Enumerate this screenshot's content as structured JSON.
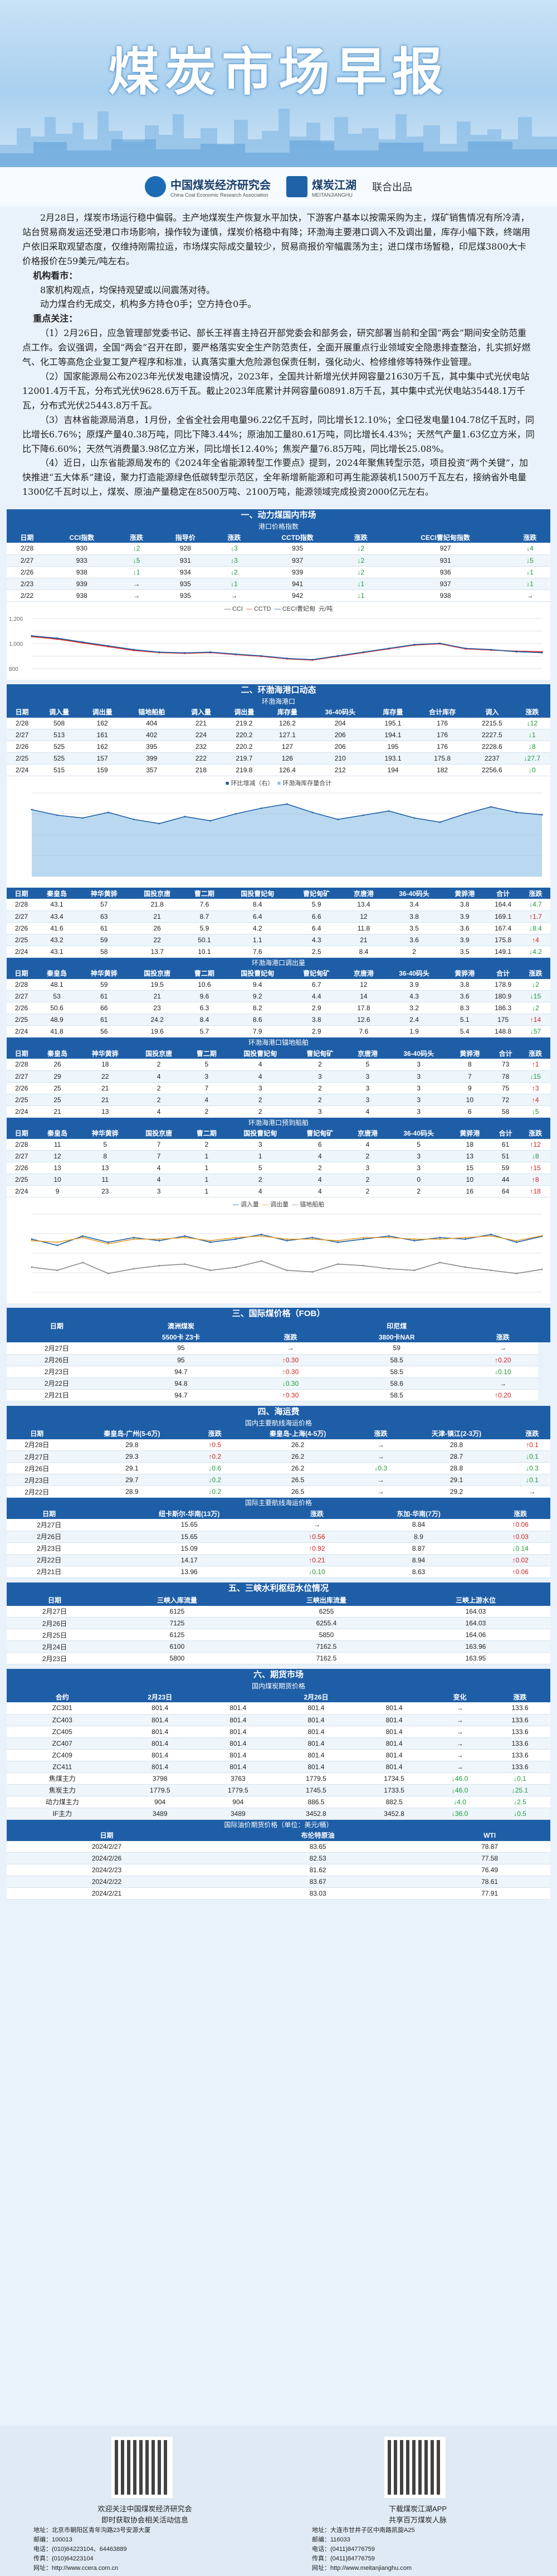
{
  "header": {
    "title": "煤炭市场早报",
    "logo1": "中国煤炭经济研究会",
    "logo1_en": "China Coal Economic Research Association",
    "logo2": "煤炭江湖",
    "logo2_en": "MEITANJIANGHU",
    "joint": "联合出品"
  },
  "intro": {
    "p1": "2月28日，煤炭市场运行稳中偏弱。主产地煤炭生产恢复水平加快，下游客户基本以按需采购为主，煤矿销售情况有所冷清，站台贸易商发运还受港口市场影响，操作较为谨慎，煤炭价格稳中有降；环渤海主要港口调入不及调出量，库存小幅下跌，终端用户依旧采取观望态度，仅维持刚需拉运，市场煤实际成交量较少，贸易商报价窄幅震荡为主；进口煤市场暂稳，印尼煤3800大卡价格报价在59美元/吨左右。",
    "h1": "机构看市：",
    "p2": "8家机构观点，均保持观望或以间震荡对待。",
    "p3": "动力煤合约无成交，机构多方持仓0手；空方持仓0手。",
    "h2": "重点关注：",
    "p4": "（1）2月26日，应急管理部党委书记、部长王祥喜主持召开部党委会和部务会，研究部署当前和全国“两会”期间安全防范重点工作。会议强调，全国“两会”召开在即，要严格落实安全生产防范责任，全面开展重点行业领域安全隐患排查整治，扎实抓好燃气、化工等高危企业复工复产程序和标准，认真落实重大危险源包保责任制，强化动火、检修维修等特殊作业管理。",
    "p5": "（2）国家能源局公布2023年光伏发电建设情况，2023年，全国共计新增光伏并网容量21630万千瓦，其中集中式光伏电站12001.4万千瓦，分布式光伏9628.6万千瓦。截止2023年底累计并网容量60891.8万千瓦，其中集中式光伏电站35448.1万千瓦，分布式光伏25443.8万千瓦。",
    "p6": "（3）吉林省能源局消息，1月份，全省全社会用电量96.22亿千瓦时，同比增长12.10%；全口径发电量104.78亿千瓦时，同比增长6.76%；原煤产量40.38万吨，同比下降3.44%；原油加工量80.61万吨，同比增长4.43%；天然气产量1.63亿立方米，同比下降6.60%；天然气消费量3.98亿立方米，同比增长12.40%；焦炭产量76.85万吨，同比增长25.08%。",
    "p7": "（4）近日，山东省能源局发布的《2024年全省能源转型工作要点》提到，2024年聚焦转型示范，项目投资“两个关键”，加快推进“五大体系”建设，聚力打造能源绿色低碳转型示范区，全年新增新能源和可再生能源装机1500万千瓦左右，接纳省外电量1300亿千瓦时以上，煤炭、原油产量稳定在8500万吨、2100万吨，能源领域完成投资2000亿元左右。"
  },
  "s1": {
    "title": "一、动力煤国内市场",
    "sub": "港口价格指数",
    "headers": [
      "日期",
      "CCI指数",
      "涨跌",
      "指导价",
      "涨跌",
      "CCTD指数",
      "涨跌",
      "CECI曹妃甸指数",
      "涨跌"
    ],
    "rows": [
      [
        "2/28",
        "930",
        "↓2",
        "928",
        "↓3",
        "935",
        "↓2",
        "927",
        "↓4"
      ],
      [
        "2/27",
        "933",
        "↓5",
        "931",
        "↓3",
        "937",
        "↓2",
        "931",
        "↓5"
      ],
      [
        "2/26",
        "938",
        "↓1",
        "934",
        "↓2",
        "939",
        "↓2",
        "936",
        "↓1"
      ],
      [
        "2/23",
        "939",
        "→",
        "935",
        "↓1",
        "941",
        "↓1",
        "937",
        "↓1"
      ],
      [
        "2/22",
        "938",
        "→",
        "935",
        "→",
        "942",
        "↓1",
        "938",
        "→"
      ]
    ],
    "legend": [
      "CCI",
      "CCTD",
      "CECI曹妃甸"
    ],
    "unit": "元/吨",
    "chart_data": {
      "type": "line",
      "series": [
        {
          "name": "CCI",
          "values": [
            1060,
            1040,
            1010,
            980,
            950,
            930,
            925,
            930,
            915,
            900,
            880,
            870,
            900,
            930,
            960,
            990,
            1000,
            960,
            950,
            935,
            930
          ]
        },
        {
          "name": "CCTD",
          "values": [
            1055,
            1035,
            1005,
            975,
            945,
            928,
            922,
            928,
            912,
            898,
            878,
            868,
            898,
            928,
            958,
            988,
            998,
            958,
            948,
            940,
            935
          ]
        },
        {
          "name": "CECI曹妃甸",
          "values": [
            1062,
            1043,
            1012,
            982,
            952,
            932,
            926,
            932,
            916,
            902,
            882,
            872,
            902,
            932,
            962,
            992,
            1002,
            962,
            952,
            936,
            927
          ]
        }
      ],
      "ylim": [
        800,
        1200
      ],
      "yticks": [
        "1,200",
        "1,000",
        "800"
      ]
    }
  },
  "s2": {
    "title": "二、环渤海港口动态",
    "sub1": "环渤海港口",
    "headers": [
      "日期",
      "调入量",
      "调出量",
      "锚地船舶",
      "调入量",
      "调出量",
      "库存量",
      "36-40码头",
      "库存量",
      "合计库存",
      "调入",
      "涨跌"
    ],
    "rows1": [
      [
        "2/28",
        "508",
        "162",
        "404",
        "221",
        "219.2",
        "126.2",
        "204",
        "195.1",
        "176",
        "2215.5",
        "↓12"
      ],
      [
        "2/27",
        "513",
        "161",
        "402",
        "224",
        "220.2",
        "127.1",
        "206",
        "194.1",
        "176",
        "2227.5",
        "↓1"
      ],
      [
        "2/26",
        "525",
        "162",
        "395",
        "232",
        "220.2",
        "127",
        "206",
        "195",
        "176",
        "2228.6",
        "↓8"
      ],
      [
        "2/25",
        "525",
        "157",
        "399",
        "222",
        "219.7",
        "126",
        "210",
        "193.1",
        "175.8",
        "2237",
        "↓27.7"
      ],
      [
        "2/24",
        "515",
        "159",
        "357",
        "218",
        "219.8",
        "126.4",
        "212",
        "194",
        "182",
        "2256.6",
        "↓0"
      ]
    ],
    "legend1": [
      "环比增减（右）",
      "环渤海库存量合计"
    ],
    "sub2": "环渤海锚地船舶",
    "headers2": [
      "日期",
      "秦皇岛",
      "神华黄骅",
      "国投京唐",
      "曹二期",
      "国投曹妃甸",
      "曹妃甸矿",
      "京唐港",
      "36-40码头",
      "黄骅港",
      "合计",
      "涨跌"
    ],
    "rows2": [
      [
        "2/28",
        "43.1",
        "57",
        "21.8",
        "7.6",
        "8.4",
        "5.9",
        "13.4",
        "3.4",
        "3.8",
        "164.4",
        "↓4.7"
      ],
      [
        "2/27",
        "43.4",
        "63",
        "21",
        "8.7",
        "6.4",
        "6.6",
        "12",
        "3.8",
        "3.9",
        "169.1",
        "↑1.7"
      ],
      [
        "2/26",
        "41.6",
        "61",
        "26",
        "5.9",
        "4.2",
        "6.4",
        "11.8",
        "3.5",
        "3.6",
        "167.4",
        "↓8.4"
      ],
      [
        "2/25",
        "43.2",
        "59",
        "22",
        "50.1",
        "1.1",
        "4.3",
        "21",
        "3.6",
        "3.9",
        "175.8",
        "↑4"
      ],
      [
        "2/24",
        "43.1",
        "58",
        "13.7",
        "10.1",
        "7.6",
        "2.5",
        "8.4",
        "2",
        "3.5",
        "149.1",
        "↓4.2"
      ]
    ],
    "sub3": "环渤海港口调出量",
    "rows3": [
      [
        "2/28",
        "48.1",
        "59",
        "19.5",
        "10.6",
        "9.4",
        "6.7",
        "12",
        "3.9",
        "3.8",
        "178.9",
        "↓2"
      ],
      [
        "2/27",
        "53",
        "61",
        "21",
        "9.6",
        "9.2",
        "4.4",
        "14",
        "4.3",
        "3.6",
        "180.9",
        "↓15"
      ],
      [
        "2/26",
        "50.6",
        "66",
        "23",
        "6.3",
        "8.2",
        "2.9",
        "17.8",
        "3.2",
        "8.3",
        "186.3",
        "↓2"
      ],
      [
        "2/25",
        "48.9",
        "61",
        "24.2",
        "8.4",
        "8.6",
        "3.8",
        "12.6",
        "2.4",
        "5.1",
        "175",
        "↑14"
      ],
      [
        "2/24",
        "41.8",
        "56",
        "19.6",
        "5.7",
        "7.9",
        "2.9",
        "7.6",
        "1.9",
        "5.4",
        "148.8",
        "↓57"
      ]
    ],
    "sub4": "环渤海港口锚地船舶",
    "rows4": [
      [
        "2/28",
        "26",
        "18",
        "2",
        "5",
        "4",
        "2",
        "5",
        "3",
        "8",
        "73",
        "↑1"
      ],
      [
        "2/27",
        "29",
        "22",
        "4",
        "3",
        "4",
        "3",
        "3",
        "3",
        "7",
        "78",
        "↓15"
      ],
      [
        "2/26",
        "25",
        "21",
        "2",
        "7",
        "3",
        "2",
        "3",
        "3",
        "9",
        "75",
        "↑3"
      ],
      [
        "2/25",
        "25",
        "21",
        "2",
        "4",
        "2",
        "2",
        "3",
        "3",
        "10",
        "72",
        "↑4"
      ],
      [
        "2/24",
        "21",
        "13",
        "4",
        "2",
        "2",
        "3",
        "4",
        "3",
        "6",
        "58",
        "↓5"
      ]
    ],
    "sub5": "环渤海港口预到船舶",
    "rows5": [
      [
        "2/28",
        "11",
        "5",
        "7",
        "2",
        "3",
        "6",
        "4",
        "5",
        "18",
        "61",
        "↑12"
      ],
      [
        "2/27",
        "12",
        "8",
        "7",
        "1",
        "1",
        "4",
        "2",
        "3",
        "13",
        "51",
        "↓8"
      ],
      [
        "2/26",
        "13",
        "13",
        "4",
        "1",
        "5",
        "2",
        "3",
        "3",
        "15",
        "59",
        "↑15"
      ],
      [
        "2/25",
        "10",
        "11",
        "4",
        "1",
        "2",
        "4",
        "2",
        "0",
        "10",
        "44",
        "↑8"
      ],
      [
        "2/24",
        "9",
        "23",
        "3",
        "1",
        "4",
        "4",
        "2",
        "2",
        "16",
        "64",
        "↑18"
      ]
    ],
    "legend6": [
      "调入量",
      "调出量",
      "锚地船舶"
    ],
    "chart_data": [
      {
        "type": "area",
        "series": [
          {
            "name": "环渤海库存量合计",
            "values": [
              2400,
              2200,
              2100,
              2300,
              2050,
              1900,
              2150,
              2000,
              2250,
              2450,
              2600,
              2300,
              2050,
              2200,
              2350,
              2100,
              1950,
              2250,
              2500,
              2300,
              2216
            ]
          }
        ],
        "ylim": [
          0,
          3000
        ]
      },
      {
        "type": "line",
        "series": [
          {
            "name": "调入量",
            "values": [
              170,
              150,
              180,
              160,
              175,
              165,
              180,
              160,
              170,
              185,
              165,
              175,
              160,
              170,
              180,
              165,
              175,
              170,
              185,
              160,
              179
            ]
          },
          {
            "name": "调出量",
            "values": [
              165,
              160,
              175,
              155,
              170,
              170,
              175,
              165,
              175,
              180,
              170,
              170,
              165,
              175,
              175,
              170,
              170,
              175,
              180,
              165,
              181
            ]
          },
          {
            "name": "锚地船舶",
            "values": [
              80,
              70,
              95,
              60,
              75,
              85,
              90,
              70,
              80,
              100,
              70,
              65,
              90,
              85,
              75,
              70,
              95,
              80,
              70,
              60,
              73
            ]
          }
        ],
        "ylim": [
          0,
          250
        ]
      }
    ]
  },
  "s3": {
    "title": "三、国际煤价格（FOB）",
    "headers": [
      "日期",
      "澳洲煤炭",
      "",
      "印尼煤",
      "",
      ""
    ],
    "sub": [
      "5500卡 Z3卡",
      "涨跌",
      "3800卡NAR",
      "涨跌"
    ],
    "rows": [
      [
        "2月27日",
        "95",
        "→",
        "59",
        "→"
      ],
      [
        "2月26日",
        "95",
        "↑0.30",
        "58.5",
        "↑0.20"
      ],
      [
        "2月23日",
        "94.7",
        "↑0.30",
        "58.5",
        "↓0.10"
      ],
      [
        "2月22日",
        "94.8",
        "↓0.30",
        "58.6",
        "→"
      ],
      [
        "2月21日",
        "94.7",
        "↑0.30",
        "58.5",
        "↑0.20"
      ]
    ]
  },
  "s4": {
    "title": "四、海运费",
    "sub1": "国内主要航线海运价格",
    "h1": [
      "日期",
      "秦皇岛-广州(5-6万)",
      "涨跌",
      "秦皇岛-上海(4-5万)",
      "涨跌",
      "天津-镇江(2-3万)",
      "涨跌"
    ],
    "rows1": [
      [
        "2月28日",
        "29.8",
        "↑0.5",
        "26.2",
        "→",
        "28.8",
        "↑0.1"
      ],
      [
        "2月27日",
        "29.3",
        "↑0.2",
        "26.2",
        "→",
        "28.7",
        "↓0.1"
      ],
      [
        "2月26日",
        "29.1",
        "↓0.6",
        "26.2",
        "↓0.3",
        "28.8",
        "↓0.3"
      ],
      [
        "2月23日",
        "29.7",
        "↓0.2",
        "26.5",
        "→",
        "29.1",
        "↓0.1"
      ],
      [
        "2月22日",
        "28.9",
        "↓0.2",
        "26.5",
        "→",
        "29.2",
        "→"
      ]
    ],
    "sub2": "国际主要航线海运价格",
    "h2": [
      "日期",
      "纽卡斯尔-华南(13万)",
      "涨跌",
      "东加-华南(7万)",
      "涨跌"
    ],
    "rows2": [
      [
        "2月27日",
        "15.65",
        "→",
        "8.84",
        "↑0.06"
      ],
      [
        "2月26日",
        "15.65",
        "↑0.56",
        "8.9",
        "↑0.03"
      ],
      [
        "2月23日",
        "15.09",
        "↑0.92",
        "8.87",
        "↓0.14"
      ],
      [
        "2月22日",
        "14.17",
        "↑0.21",
        "8.94",
        "↑0.02"
      ],
      [
        "2月21日",
        "13.96",
        "↓0.10",
        "8.63",
        "↑0.06"
      ]
    ]
  },
  "s5": {
    "title": "五、三峡水利枢纽水位情况",
    "headers": [
      "日期",
      "三峡入库流量",
      "三峡出库流量",
      "三峡上游水位"
    ],
    "rows": [
      [
        "2月27日",
        "6125",
        "6255",
        "164.03"
      ],
      [
        "2月26日",
        "7125",
        "6255.4",
        "164.03"
      ],
      [
        "2月25日",
        "6125",
        "5850",
        "164.06"
      ],
      [
        "2月24日",
        "6100",
        "7162.5",
        "163.96"
      ],
      [
        "2月23日",
        "5800",
        "7162.5",
        "163.95"
      ]
    ]
  },
  "s6": {
    "title": "六、期货市场",
    "sub1": "国内煤炭期货价格",
    "h1": [
      "合约",
      "2月23日",
      "",
      "2月26日",
      "",
      "变化",
      "涨跌"
    ],
    "rows1": [
      [
        "ZC301",
        "801.4",
        "801.4",
        "801.4",
        "801.4",
        "→",
        "133.6"
      ],
      [
        "ZC403",
        "801.4",
        "801.4",
        "801.4",
        "801.4",
        "→",
        "133.6"
      ],
      [
        "ZC405",
        "801.4",
        "801.4",
        "801.4",
        "801.4",
        "→",
        "133.6"
      ],
      [
        "ZC407",
        "801.4",
        "801.4",
        "801.4",
        "801.4",
        "→",
        "133.6"
      ],
      [
        "ZC409",
        "801.4",
        "801.4",
        "801.4",
        "801.4",
        "→",
        "133.6"
      ],
      [
        "ZC411",
        "801.4",
        "801.4",
        "801.4",
        "801.4",
        "→",
        "133.6"
      ],
      [
        "焦煤主力",
        "3798",
        "3763",
        "1779.5",
        "1734.5",
        "↓46.0",
        "↓0.1"
      ],
      [
        "焦炭主力",
        "1779.5",
        "1779.5",
        "1745.5",
        "1733.5",
        "↓46.0",
        "↓25.1"
      ],
      [
        "动力煤主力",
        "904",
        "904",
        "886.5",
        "882.5",
        "↓4.0",
        "↓2.5"
      ],
      [
        "IF主力",
        "3489",
        "3489",
        "3452.8",
        "3452.8",
        "↓36.0",
        "↓0.5"
      ]
    ],
    "sub2": "国际油价期货价格（单位：美元/桶）",
    "h2": [
      "日期",
      "布伦特原油",
      "WTI"
    ],
    "rows2": [
      [
        "2024/2/27",
        "83.65",
        "78.87"
      ],
      [
        "2024/2/26",
        "82.53",
        "77.58"
      ],
      [
        "2024/2/23",
        "81.62",
        "76.49"
      ],
      [
        "2024/2/22",
        "83.67",
        "78.61"
      ],
      [
        "2024/2/21",
        "83.03",
        "77.91"
      ]
    ]
  },
  "footer": {
    "qr1": "欢迎关注中国煤炭经济研究会",
    "qr1b": "即时获取协会相关活动信息",
    "qr2": "下载煤炭江湖APP",
    "qr2b": "共享百万煤炭人脉",
    "left": [
      "地址：北京市朝阳区青年沟路23号安源大厦",
      "邮编：100013",
      "电话：(010)64223104、64463889",
      "传真：(010)64223104",
      "网址：http://www.ccera.com.cn"
    ],
    "right": [
      "地址：大连市甘井子区中南路凯旋A25",
      "邮编：116033",
      "电话：(0411)84776759",
      "传真：(0411)84776759",
      "网址：http://www.meitanjianghu.com"
    ]
  }
}
